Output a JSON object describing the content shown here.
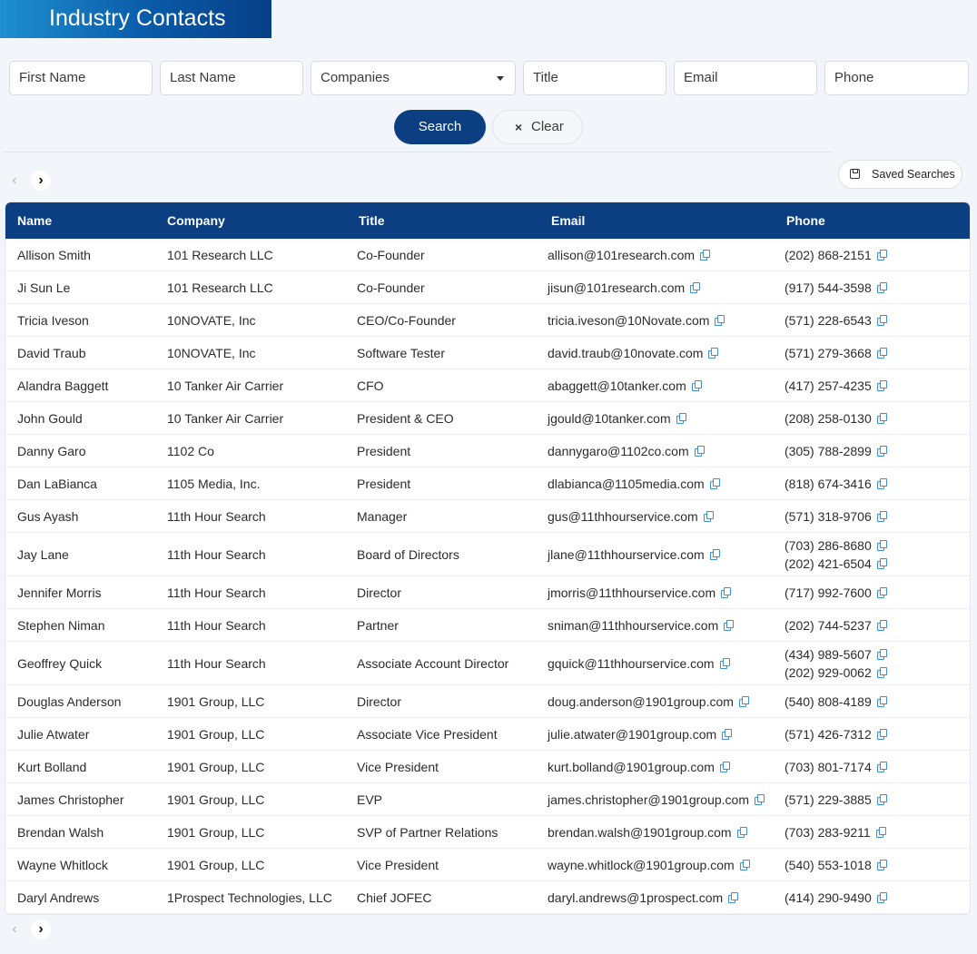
{
  "page": {
    "title": "Industry Contacts"
  },
  "filters": {
    "first_name": "First Name",
    "last_name": "Last Name",
    "companies": "Companies",
    "title": "Title",
    "email": "Email",
    "phone": "Phone"
  },
  "actions": {
    "search": "Search",
    "clear_icon": "×",
    "clear": "Clear",
    "saved_searches": "Saved Searches"
  },
  "pager": {
    "prev": "‹",
    "next": "›"
  },
  "table": {
    "headers": {
      "name": "Name",
      "company": "Company",
      "title": "Title",
      "email": "Email",
      "phone": "Phone"
    },
    "rows": [
      {
        "name": "Allison Smith",
        "company": "101 Research LLC",
        "title": "Co-Founder",
        "email": "allison@101research.com",
        "phones": [
          "(202) 868-2151"
        ]
      },
      {
        "name": "Ji Sun Le",
        "company": "101 Research LLC",
        "title": "Co-Founder",
        "email": "jisun@101research.com",
        "phones": [
          "(917) 544-3598"
        ]
      },
      {
        "name": "Tricia Iveson",
        "company": "10NOVATE, Inc",
        "title": "CEO/Co-Founder",
        "email": "tricia.iveson@10Novate.com",
        "phones": [
          "(571) 228-6543"
        ]
      },
      {
        "name": "David Traub",
        "company": "10NOVATE, Inc",
        "title": "Software Tester",
        "email": "david.traub@10novate.com",
        "phones": [
          "(571) 279-3668"
        ]
      },
      {
        "name": "Alandra Baggett",
        "company": "10 Tanker Air Carrier",
        "title": "CFO",
        "email": "abaggett@10tanker.com",
        "phones": [
          "(417) 257-4235"
        ]
      },
      {
        "name": "John Gould",
        "company": "10 Tanker Air Carrier",
        "title": "President & CEO",
        "email": "jgould@10tanker.com",
        "phones": [
          "(208) 258-0130"
        ]
      },
      {
        "name": "Danny Garo",
        "company": "1102 Co",
        "title": "President",
        "email": "dannygaro@1102co.com",
        "phones": [
          "(305) 788-2899"
        ]
      },
      {
        "name": "Dan LaBianca",
        "company": "1105 Media, Inc.",
        "title": "President",
        "email": "dlabianca@1105media.com",
        "phones": [
          "(818) 674-3416"
        ]
      },
      {
        "name": "Gus Ayash",
        "company": "11th Hour Search",
        "title": "Manager",
        "email": "gus@11thhourservice.com",
        "phones": [
          "(571) 318-9706"
        ]
      },
      {
        "name": "Jay Lane",
        "company": "11th Hour Search",
        "title": "Board of Directors",
        "email": "jlane@11thhourservice.com",
        "phones": [
          "(703) 286-8680",
          "(202) 421-6504"
        ]
      },
      {
        "name": "Jennifer Morris",
        "company": "11th Hour Search",
        "title": "Director",
        "email": "jmorris@11thhourservice.com",
        "phones": [
          "(717) 992-7600"
        ]
      },
      {
        "name": "Stephen Niman",
        "company": "11th Hour Search",
        "title": "Partner",
        "email": "sniman@11thhourservice.com",
        "phones": [
          "(202) 744-5237"
        ]
      },
      {
        "name": "Geoffrey Quick",
        "company": "11th Hour Search",
        "title": "Associate Account Director",
        "email": "gquick@11thhourservice.com",
        "phones": [
          "(434) 989-5607",
          "(202) 929-0062"
        ]
      },
      {
        "name": "Douglas Anderson",
        "company": "1901 Group, LLC",
        "title": "Director",
        "email": "doug.anderson@1901group.com",
        "phones": [
          "(540) 808-4189"
        ]
      },
      {
        "name": "Julie Atwater",
        "company": "1901 Group, LLC",
        "title": "Associate Vice President",
        "email": "julie.atwater@1901group.com",
        "phones": [
          "(571) 426-7312"
        ]
      },
      {
        "name": "Kurt Bolland",
        "company": "1901 Group, LLC",
        "title": "Vice President",
        "email": "kurt.bolland@1901group.com",
        "phones": [
          "(703) 801-7174"
        ]
      },
      {
        "name": "James Christopher",
        "company": "1901 Group, LLC",
        "title": "EVP",
        "email": "james.christopher@1901group.com",
        "phones": [
          "(571) 229-3885"
        ]
      },
      {
        "name": "Brendan Walsh",
        "company": "1901 Group, LLC",
        "title": "SVP of Partner Relations",
        "email": "brendan.walsh@1901group.com",
        "phones": [
          "(703) 283-9211"
        ]
      },
      {
        "name": "Wayne Whitlock",
        "company": "1901 Group, LLC",
        "title": "Vice President",
        "email": "wayne.whitlock@1901group.com",
        "phones": [
          "(540) 553-1018"
        ]
      },
      {
        "name": "Daryl Andrews",
        "company": "1Prospect Technologies, LLC",
        "title": "Chief JOFEC",
        "email": "daryl.andrews@1prospect.com",
        "phones": [
          "(414) 290-9490"
        ]
      }
    ]
  },
  "colors": {
    "brand_navy": "#0b3f82",
    "copy_icon": "#3d8fd6"
  },
  "icons": {
    "copy": "copy-icon",
    "save": "save-icon",
    "dropdown": "chevron-down-icon"
  }
}
